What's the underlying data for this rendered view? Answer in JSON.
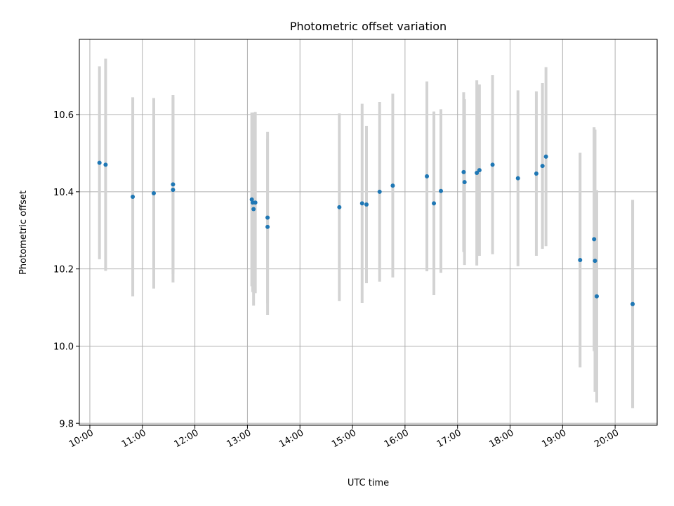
{
  "chart_data": {
    "type": "scatter",
    "title": "Photometric offset variation",
    "xlabel": "UTC time",
    "ylabel": "Photometric offset",
    "x_ticks": [
      "10:00",
      "11:00",
      "12:00",
      "13:00",
      "14:00",
      "15:00",
      "16:00",
      "17:00",
      "18:00",
      "19:00",
      "20:00"
    ],
    "y_ticks": [
      "9.8",
      "10.0",
      "10.2",
      "10.4",
      "10.6"
    ],
    "xlim": [
      "09:48",
      "20:48"
    ],
    "ylim": [
      9.795,
      10.795
    ],
    "grid": true,
    "errorbar_color": "#d3d3d3",
    "point_color": "#1f77b4",
    "points": [
      {
        "x": "10:11",
        "y": 10.475,
        "err": 0.25
      },
      {
        "x": "10:18",
        "y": 10.47,
        "err": 0.275
      },
      {
        "x": "10:49",
        "y": 10.387,
        "err": 0.258
      },
      {
        "x": "11:13",
        "y": 10.396,
        "err": 0.247
      },
      {
        "x": "11:35",
        "y": 10.419,
        "err": 0.232
      },
      {
        "x": "11:35",
        "y": 10.405,
        "err": 0.24
      },
      {
        "x": "13:05",
        "y": 10.38,
        "err": 0.225
      },
      {
        "x": "13:06",
        "y": 10.372,
        "err": 0.232
      },
      {
        "x": "13:07",
        "y": 10.355,
        "err": 0.25
      },
      {
        "x": "13:09",
        "y": 10.372,
        "err": 0.235
      },
      {
        "x": "13:23",
        "y": 10.333,
        "err": 0.222
      },
      {
        "x": "13:23",
        "y": 10.309,
        "err": 0.228
      },
      {
        "x": "14:45",
        "y": 10.36,
        "err": 0.243
      },
      {
        "x": "15:11",
        "y": 10.37,
        "err": 0.258
      },
      {
        "x": "15:16",
        "y": 10.367,
        "err": 0.204
      },
      {
        "x": "15:31",
        "y": 10.4,
        "err": 0.233
      },
      {
        "x": "15:46",
        "y": 10.416,
        "err": 0.238
      },
      {
        "x": "16:25",
        "y": 10.44,
        "err": 0.246
      },
      {
        "x": "16:33",
        "y": 10.37,
        "err": 0.238
      },
      {
        "x": "16:41",
        "y": 10.402,
        "err": 0.212
      },
      {
        "x": "17:07",
        "y": 10.451,
        "err": 0.207
      },
      {
        "x": "17:08",
        "y": 10.425,
        "err": 0.215
      },
      {
        "x": "17:22",
        "y": 10.449,
        "err": 0.24
      },
      {
        "x": "17:25",
        "y": 10.456,
        "err": 0.222
      },
      {
        "x": "17:40",
        "y": 10.47,
        "err": 0.232
      },
      {
        "x": "18:09",
        "y": 10.435,
        "err": 0.228
      },
      {
        "x": "18:30",
        "y": 10.447,
        "err": 0.213
      },
      {
        "x": "18:37",
        "y": 10.467,
        "err": 0.215
      },
      {
        "x": "18:41",
        "y": 10.491,
        "err": 0.232
      },
      {
        "x": "19:20",
        "y": 10.223,
        "err": 0.278
      },
      {
        "x": "19:36",
        "y": 10.277,
        "err": 0.29
      },
      {
        "x": "19:37",
        "y": 10.221,
        "err": 0.34
      },
      {
        "x": "19:39",
        "y": 10.129,
        "err": 0.275
      },
      {
        "x": "20:20",
        "y": 10.109,
        "err": 0.27
      }
    ]
  }
}
